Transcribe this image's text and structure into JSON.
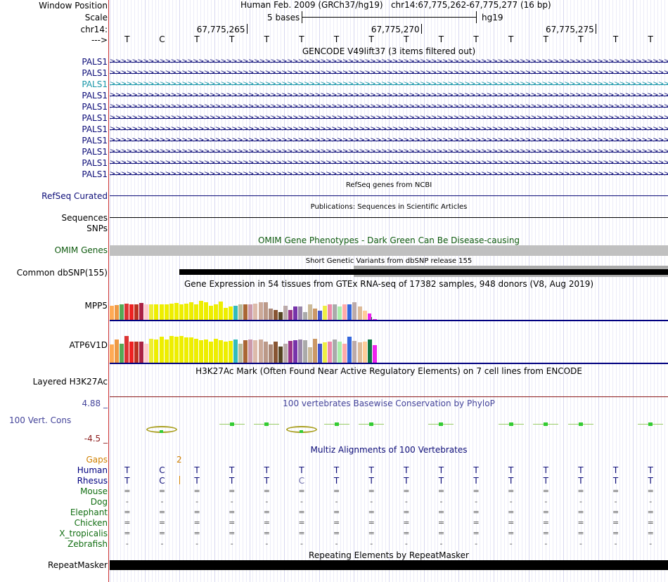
{
  "header": {
    "window_position_label": "Window Position",
    "assembly_text": "Human Feb. 2009 (GRCh37/hg19)   chr14:67,775,262-67,775,277 (16 bp)",
    "scale_label": "Scale",
    "scale_text": "5 bases",
    "scale_db": "hg19",
    "chrom_label": "chr14:",
    "positions": [
      "67,775,265",
      "67,775,270",
      "67,775,275"
    ],
    "strand_label": "--->",
    "bases": [
      "T",
      "C",
      "T",
      "T",
      "T",
      "T",
      "T",
      "T",
      "T",
      "T",
      "T",
      "T",
      "T",
      "T",
      "T",
      "T"
    ]
  },
  "gencode": {
    "title": "GENCODE V49lift37 (3 items filtered out)",
    "genes": [
      "PALS1",
      "PALS1",
      "PALS1",
      "PALS1",
      "PALS1",
      "PALS1",
      "PALS1",
      "PALS1",
      "PALS1",
      "PALS1",
      "PALS1"
    ],
    "highlighted_index": 2
  },
  "refseq": {
    "label": "RefSeq Curated",
    "title": "RefSeq genes from NCBI"
  },
  "sequences": {
    "label": "Sequences",
    "title": "Publications: Sequences in Scientific Articles"
  },
  "snps": {
    "label": "SNPs"
  },
  "omim": {
    "label": "OMIM Genes",
    "title": "OMIM Gene Phenotypes - Dark Green Can Be Disease-causing"
  },
  "dbsnp": {
    "label": "Common dbSNP(155)",
    "title": "Short Genetic Variants from dbSNP release 155"
  },
  "gtex": {
    "title": "Gene Expression in 54 tissues from GTEx RNA-seq of 17382 samples, 948 donors (V8, Aug 2019)",
    "genes": [
      {
        "name": "MPP5",
        "values": [
          0.45,
          0.47,
          0.48,
          0.52,
          0.5,
          0.5,
          0.53,
          0.48,
          0.5,
          0.48,
          0.5,
          0.5,
          0.52,
          0.54,
          0.5,
          0.52,
          0.55,
          0.48,
          0.6,
          0.56,
          0.45,
          0.5,
          0.58,
          0.38,
          0.42,
          0.45,
          0.5,
          0.5,
          0.48,
          0.52,
          0.56,
          0.55,
          0.35,
          0.32,
          0.25,
          0.45,
          0.32,
          0.42,
          0.42,
          0.25,
          0.48,
          0.35,
          0.28,
          0.45,
          0.48,
          0.5,
          0.42,
          0.48,
          0.48,
          0.55,
          0.42,
          0.28,
          0.08,
          0.0
        ]
      },
      {
        "name": "ATP6V1D",
        "values": [
          0.48,
          0.6,
          0.5,
          0.7,
          0.55,
          0.55,
          0.55,
          0.5,
          0.62,
          0.6,
          0.68,
          0.6,
          0.7,
          0.68,
          0.7,
          0.66,
          0.66,
          0.62,
          0.58,
          0.6,
          0.55,
          0.62,
          0.58,
          0.55,
          0.56,
          0.6,
          0.5,
          0.58,
          0.6,
          0.58,
          0.6,
          0.55,
          0.48,
          0.55,
          0.42,
          0.5,
          0.56,
          0.58,
          0.6,
          0.58,
          0.4,
          0.62,
          0.5,
          0.52,
          0.55,
          0.6,
          0.55,
          0.5,
          0.68,
          0.56,
          0.52,
          0.55,
          0.6,
          0.45
        ]
      }
    ],
    "colors": [
      "#ffaa55",
      "#ee9944",
      "#55aa55",
      "#dd3333",
      "#ee2222",
      "#bb3322",
      "#aa2244",
      "#ffcccc",
      "#eeee33",
      "#eeee00",
      "#eeee00",
      "#eeee00",
      "#eeee00",
      "#eeee00",
      "#eeee00",
      "#eeee00",
      "#eeee00",
      "#eeee00",
      "#eeee00",
      "#eeee00",
      "#eeee00",
      "#eeee00",
      "#eeee00",
      "#eeee00",
      "#eeee00",
      "#33bbbb",
      "#bbbb99",
      "#aa6633",
      "#cc99aa",
      "#ddbbaa",
      "#ccaa99",
      "#bb9988",
      "#aa8877",
      "#885533",
      "#554422",
      "#bbaaaa",
      "#993388",
      "#7733aa",
      "#9988aa",
      "#aaaaaa",
      "#ccbb99",
      "#cc9966",
      "#4455cc",
      "#eeee44",
      "#ee88aa",
      "#aaaaaa",
      "#aaeeaa",
      "#ffaaaa",
      "#3366dd",
      "#bbaaaa",
      "#ddbb99",
      "#ffcc99",
      "#117744",
      "#ee22ee"
    ]
  },
  "h3k27": {
    "label": "Layered H3K27Ac",
    "title": "H3K27Ac Mark (Often Found Near Active Regulatory Elements) on 7 cell lines from ENCODE"
  },
  "cons": {
    "label": "100 Vert. Cons",
    "max": "4.88 _",
    "min": "-4.5 _",
    "title": "100 vertebrates Basewise Conservation by PhyloP"
  },
  "multiz": {
    "title": "Multiz Alignments of 100 Vertebrates",
    "gaps_label": "Gaps",
    "gap_count": "2",
    "species": [
      {
        "name": "Human",
        "row": [
          "T",
          "C",
          "T",
          "T",
          "T",
          "T",
          "T",
          "T",
          "T",
          "T",
          "T",
          "T",
          "T",
          "T",
          "T",
          "T"
        ]
      },
      {
        "name": "Rhesus",
        "row": [
          "T",
          "C",
          "T",
          "T",
          "T",
          "C",
          "T",
          "T",
          "T",
          "T",
          "T",
          "T",
          "T",
          "T",
          "T",
          "T"
        ]
      },
      {
        "name": "Mouse",
        "row": [
          "=",
          "=",
          "=",
          "=",
          "=",
          "=",
          "=",
          "=",
          "=",
          "=",
          "=",
          "=",
          "=",
          "=",
          "=",
          "="
        ]
      },
      {
        "name": "Dog",
        "row": [
          "-",
          "-",
          "-",
          "-",
          "-",
          "-",
          "-",
          "-",
          "-",
          "-",
          "-",
          "-",
          "-",
          "-",
          "-",
          "-"
        ]
      },
      {
        "name": "Elephant",
        "row": [
          "=",
          "=",
          "=",
          "=",
          "=",
          "=",
          "=",
          "=",
          "=",
          "=",
          "=",
          "=",
          "=",
          "=",
          "=",
          "="
        ]
      },
      {
        "name": "Chicken",
        "row": [
          "=",
          "=",
          "=",
          "=",
          "=",
          "=",
          "=",
          "=",
          "=",
          "=",
          "=",
          "=",
          "=",
          "=",
          "=",
          "="
        ]
      },
      {
        "name": "X_tropicalis",
        "row": [
          "=",
          "=",
          "=",
          "=",
          "=",
          "=",
          "=",
          "=",
          "=",
          "=",
          "=",
          "=",
          "=",
          "=",
          "=",
          "="
        ]
      },
      {
        "name": "Zebrafish",
        "row": [
          "-",
          "-",
          "-",
          "-",
          "-",
          "-",
          "-",
          "-",
          "-",
          "-",
          "-",
          "-",
          "-",
          "-",
          "-",
          "-"
        ]
      }
    ]
  },
  "repeatmasker": {
    "label": "RepeatMasker",
    "title": "Repeating Elements by RepeatMasker"
  },
  "colors": {
    "navy": "#000080",
    "gene_blue": "#0c0c78",
    "gene_highlight": "#1896a8",
    "omim_green": "#0e5a0e",
    "gap_orange": "#d08000",
    "cons_blue": "#44449a",
    "cons_red": "#8b1a1a",
    "cons_green": "#33cc33",
    "species_green": "#126e12"
  }
}
